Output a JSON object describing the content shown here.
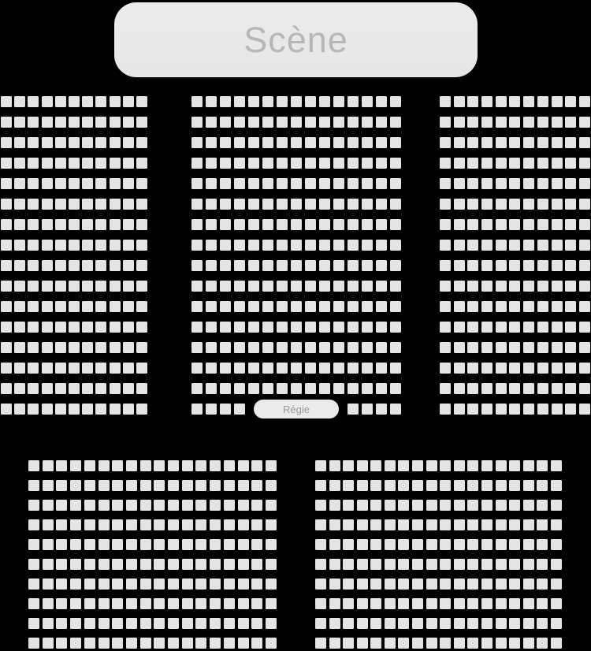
{
  "stage": {
    "label": "Scène"
  },
  "booth": {
    "label": "Régie"
  },
  "colors": {
    "background": "#000000",
    "seat": "#e4e4e4",
    "stage_bg": "#e9e9e9",
    "stage_text": "#b5b7b8",
    "booth_bg": "#ebebeb",
    "booth_text": "#999999"
  },
  "sections": [
    {
      "id": "orchestra-left",
      "rows": 16,
      "cols": 11,
      "seat_count": 176
    },
    {
      "id": "orchestra-center",
      "rows": 16,
      "cols": 15,
      "seat_count": 233,
      "booth_row": {
        "left_seats": 4,
        "right_seats": 4
      }
    },
    {
      "id": "orchestra-right",
      "rows": 16,
      "cols": 11,
      "seat_count": 176
    },
    {
      "id": "rear-left",
      "rows": 10,
      "cols": 18,
      "seat_count": 180
    },
    {
      "id": "rear-right",
      "rows": 10,
      "cols": 18,
      "seat_count": 180
    }
  ],
  "total_seats": 945
}
